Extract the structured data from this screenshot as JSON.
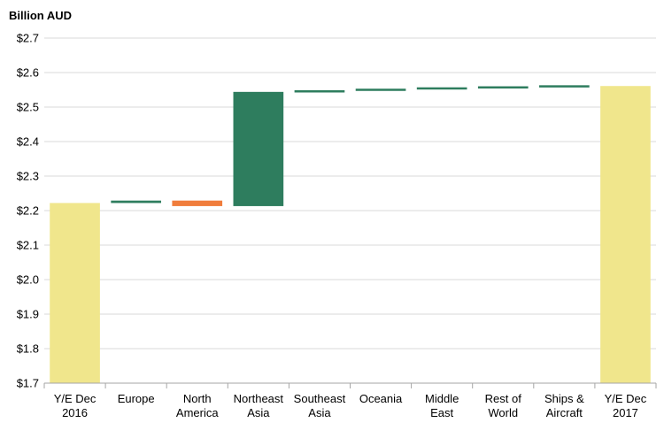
{
  "chart_data": {
    "type": "bar",
    "subtype": "waterfall",
    "ylabel": "Billion AUD",
    "ylim": [
      1.7,
      2.7
    ],
    "y_ticks": [
      {
        "value": 1.7,
        "label": "$1.7"
      },
      {
        "value": 1.8,
        "label": "$1.8"
      },
      {
        "value": 1.9,
        "label": "$1.9"
      },
      {
        "value": 2.0,
        "label": "$2.0"
      },
      {
        "value": 2.1,
        "label": "$2.1"
      },
      {
        "value": 2.2,
        "label": "$2.2"
      },
      {
        "value": 2.3,
        "label": "$2.3"
      },
      {
        "value": 2.4,
        "label": "$2.4"
      },
      {
        "value": 2.5,
        "label": "$2.5"
      },
      {
        "value": 2.6,
        "label": "$2.6"
      },
      {
        "value": 2.7,
        "label": "$2.7"
      }
    ],
    "grid": true,
    "legend": "none",
    "colors": {
      "total": "#f0e68c",
      "increase": "#2e7d5e",
      "decrease": "#f07d3c",
      "grid": "#d9d9d9",
      "axis": "#a6a6a6"
    },
    "bars": [
      {
        "category": [
          "Y/E Dec",
          "2016"
        ],
        "kind": "total",
        "start": 1.7,
        "end": 2.222
      },
      {
        "category": [
          "Europe"
        ],
        "kind": "increase",
        "start": 2.222,
        "end": 2.229
      },
      {
        "category": [
          "North",
          "America"
        ],
        "kind": "decrease",
        "start": 2.229,
        "end": 2.213
      },
      {
        "category": [
          "Northeast",
          "Asia"
        ],
        "kind": "increase",
        "start": 2.213,
        "end": 2.544
      },
      {
        "category": [
          "Southeast",
          "Asia"
        ],
        "kind": "increase",
        "start": 2.544,
        "end": 2.547
      },
      {
        "category": [
          "Oceania"
        ],
        "kind": "increase",
        "start": 2.547,
        "end": 2.553
      },
      {
        "category": [
          "Middle",
          "East"
        ],
        "kind": "increase",
        "start": 2.553,
        "end": 2.555
      },
      {
        "category": [
          "Rest of",
          "World"
        ],
        "kind": "increase",
        "start": 2.555,
        "end": 2.559
      },
      {
        "category": [
          "Ships &",
          "Aircraft"
        ],
        "kind": "increase",
        "start": 2.559,
        "end": 2.561
      },
      {
        "category": [
          "Y/E Dec",
          "2017"
        ],
        "kind": "total",
        "start": 1.7,
        "end": 2.561
      }
    ]
  }
}
